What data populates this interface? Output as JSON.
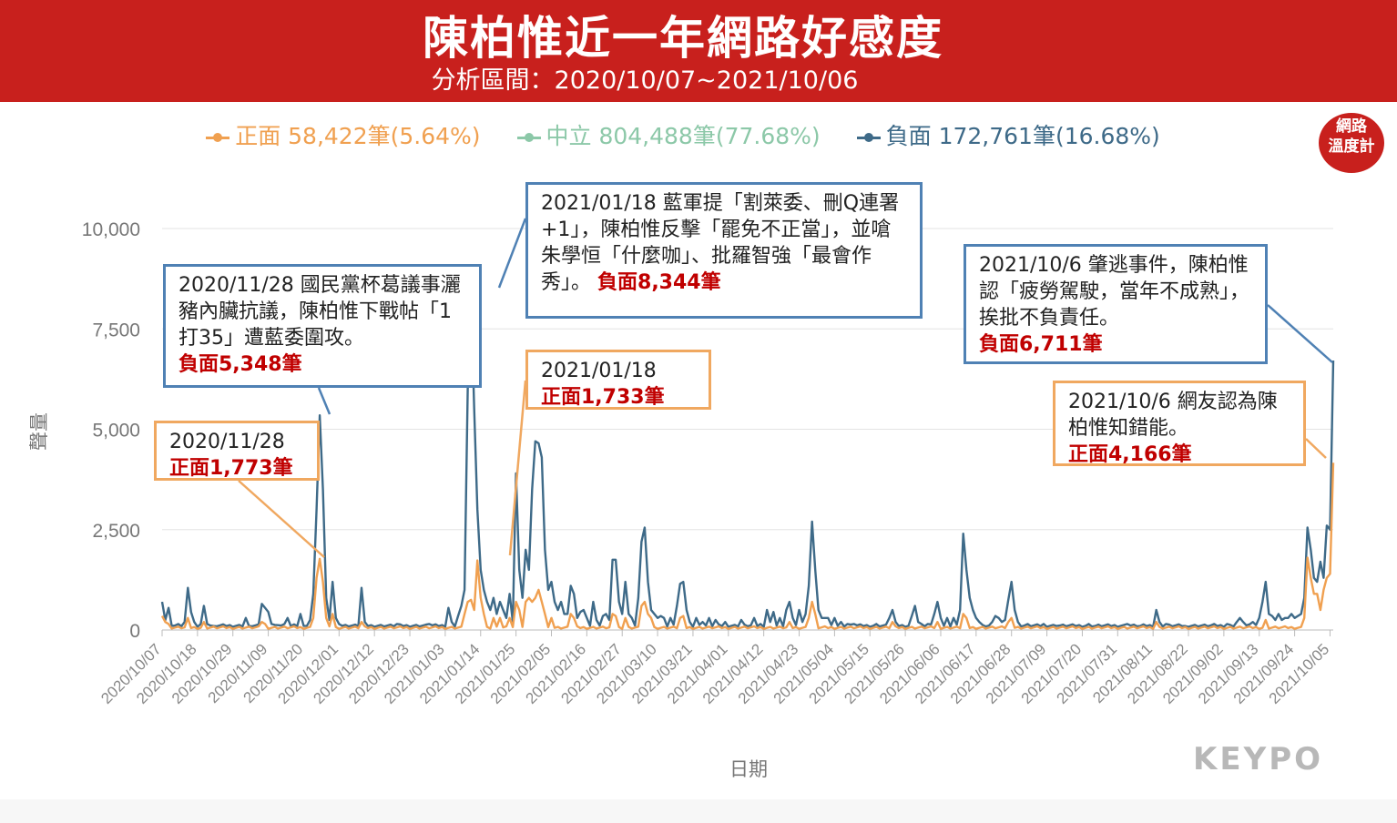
{
  "header": {
    "title": "陳柏惟近一年網路好感度",
    "subtitle": "分析區間：2020/10/07~2021/10/06"
  },
  "legend": [
    {
      "label": "正面 58,422筆(5.64%)",
      "color": "#f0a050"
    },
    {
      "label": "中立 804,488筆(77.68%)",
      "color": "#8cc8a8"
    },
    {
      "label": "負面 172,761筆(16.68%)",
      "color": "#3e6a88"
    }
  ],
  "badge": {
    "line1": "網路",
    "line2": "溫度計"
  },
  "brand": "KEYPO",
  "annotations": {
    "a1": {
      "text": "2020/11/28 國民黨杯葛議事灑豬內臟抗議，陳柏惟下戰帖「1打35」遭藍委圍攻。",
      "highlight": "負面5,348筆"
    },
    "a2": {
      "text": "2020/11/28",
      "highlight": "正面1,773筆"
    },
    "a3": {
      "text": "2021/01/18 藍軍提「割萊委、刪Q連署+1」，陳柏惟反擊「罷免不正當」，並嗆朱學恒「什麼咖」、批羅智強「最會作秀」。",
      "highlight": "負面8,344筆"
    },
    "a4": {
      "text": "2021/01/18",
      "highlight": "正面1,733筆"
    },
    "a5": {
      "text": "2021/10/6 肇逃事件，陳柏惟認「疲勞駕駛，當年不成熟」，挨批不負責任。",
      "highlight": "負面6,711筆"
    },
    "a6": {
      "text": "2021/10/6 網友認為陳柏惟知錯能。",
      "highlight": "正面4,166筆"
    }
  },
  "chart_data": {
    "type": "line",
    "ylabel": "聲量",
    "xlabel": "日期",
    "ylim": [
      0,
      10000
    ],
    "yticks": [
      "0",
      "2,500",
      "5,000",
      "7,500",
      "10,000"
    ],
    "ytick_values": [
      0,
      2500,
      5000,
      7500,
      10000
    ],
    "xticks": [
      "2020/10/07",
      "2020/10/18",
      "2020/10/29",
      "2020/11/09",
      "2020/11/20",
      "2020/12/01",
      "2020/12/12",
      "2020/12/23",
      "2021/01/03",
      "2021/01/14",
      "2021/01/25",
      "2021/02/05",
      "2021/02/16",
      "2021/02/27",
      "2021/03/10",
      "2021/03/21",
      "2021/04/01",
      "2021/04/12",
      "2021/04/23",
      "2021/05/04",
      "2021/05/15",
      "2021/05/26",
      "2021/06/06",
      "2021/06/17",
      "2021/06/28",
      "2021/07/09",
      "2021/07/20",
      "2021/07/31",
      "2021/08/11",
      "2021/08/22",
      "2021/09/02",
      "2021/09/13",
      "2021/09/24",
      "2021/10/05"
    ],
    "start_date": "2020/10/07",
    "num_days": 365,
    "grid": true,
    "legend_position": "top",
    "series": [
      {
        "name": "負面",
        "color": "#3e6a88",
        "base": 80,
        "points": [
          [
            0,
            700
          ],
          [
            1,
            250
          ],
          [
            2,
            550
          ],
          [
            3,
            100
          ],
          [
            5,
            150
          ],
          [
            7,
            200
          ],
          [
            8,
            1050
          ],
          [
            9,
            450
          ],
          [
            10,
            200
          ],
          [
            12,
            150
          ],
          [
            13,
            600
          ],
          [
            14,
            150
          ],
          [
            16,
            100
          ],
          [
            26,
            300
          ],
          [
            27,
            100
          ],
          [
            31,
            650
          ],
          [
            32,
            550
          ],
          [
            33,
            450
          ],
          [
            34,
            150
          ],
          [
            36,
            120
          ],
          [
            38,
            150
          ],
          [
            39,
            300
          ],
          [
            40,
            100
          ],
          [
            43,
            400
          ],
          [
            44,
            100
          ],
          [
            46,
            250
          ],
          [
            47,
            900
          ],
          [
            48,
            3000
          ],
          [
            49,
            5348
          ],
          [
            50,
            3500
          ],
          [
            51,
            800
          ],
          [
            52,
            250
          ],
          [
            53,
            1200
          ],
          [
            54,
            300
          ],
          [
            55,
            150
          ],
          [
            61,
            100
          ],
          [
            62,
            1050
          ],
          [
            63,
            200
          ],
          [
            65,
            120
          ],
          [
            73,
            150
          ],
          [
            76,
            120
          ],
          [
            83,
            150
          ],
          [
            89,
            550
          ],
          [
            90,
            200
          ],
          [
            92,
            350
          ],
          [
            93,
            600
          ],
          [
            94,
            1000
          ],
          [
            95,
            6000
          ],
          [
            96,
            8344
          ],
          [
            97,
            5500
          ],
          [
            98,
            3000
          ],
          [
            99,
            1500
          ],
          [
            100,
            1000
          ],
          [
            101,
            700
          ],
          [
            102,
            500
          ],
          [
            103,
            800
          ],
          [
            104,
            400
          ],
          [
            105,
            700
          ],
          [
            106,
            500
          ],
          [
            107,
            300
          ],
          [
            108,
            900
          ],
          [
            109,
            200
          ],
          [
            110,
            3900
          ],
          [
            111,
            1500
          ],
          [
            112,
            800
          ],
          [
            113,
            2000
          ],
          [
            114,
            1500
          ],
          [
            115,
            3500
          ],
          [
            116,
            4700
          ],
          [
            117,
            4650
          ],
          [
            118,
            4300
          ],
          [
            119,
            2000
          ],
          [
            120,
            1000
          ],
          [
            121,
            1200
          ],
          [
            122,
            700
          ],
          [
            123,
            500
          ],
          [
            124,
            700
          ],
          [
            125,
            400
          ],
          [
            126,
            400
          ],
          [
            127,
            1100
          ],
          [
            128,
            900
          ],
          [
            129,
            300
          ],
          [
            130,
            450
          ],
          [
            131,
            500
          ],
          [
            132,
            300
          ],
          [
            134,
            700
          ],
          [
            135,
            250
          ],
          [
            137,
            350
          ],
          [
            138,
            400
          ],
          [
            139,
            250
          ],
          [
            140,
            1750
          ],
          [
            141,
            1750
          ],
          [
            142,
            700
          ],
          [
            143,
            400
          ],
          [
            144,
            1200
          ],
          [
            145,
            400
          ],
          [
            146,
            300
          ],
          [
            148,
            800
          ],
          [
            149,
            2200
          ],
          [
            150,
            2550
          ],
          [
            151,
            1200
          ],
          [
            152,
            500
          ],
          [
            153,
            400
          ],
          [
            154,
            300
          ],
          [
            155,
            350
          ],
          [
            156,
            300
          ],
          [
            158,
            300
          ],
          [
            160,
            600
          ],
          [
            161,
            1150
          ],
          [
            162,
            1200
          ],
          [
            163,
            500
          ],
          [
            164,
            200
          ],
          [
            166,
            300
          ],
          [
            168,
            200
          ],
          [
            170,
            300
          ],
          [
            172,
            250
          ],
          [
            175,
            200
          ],
          [
            180,
            250
          ],
          [
            184,
            300
          ],
          [
            186,
            150
          ],
          [
            188,
            500
          ],
          [
            189,
            200
          ],
          [
            190,
            450
          ],
          [
            192,
            300
          ],
          [
            194,
            500
          ],
          [
            195,
            700
          ],
          [
            196,
            300
          ],
          [
            198,
            500
          ],
          [
            199,
            200
          ],
          [
            200,
            400
          ],
          [
            201,
            1100
          ],
          [
            202,
            2700
          ],
          [
            203,
            1500
          ],
          [
            204,
            500
          ],
          [
            205,
            300
          ],
          [
            206,
            300
          ],
          [
            207,
            300
          ],
          [
            209,
            300
          ],
          [
            211,
            200
          ],
          [
            213,
            150
          ],
          [
            215,
            150
          ],
          [
            222,
            150
          ],
          [
            226,
            300
          ],
          [
            227,
            500
          ],
          [
            228,
            200
          ],
          [
            233,
            350
          ],
          [
            234,
            600
          ],
          [
            235,
            200
          ],
          [
            236,
            150
          ],
          [
            238,
            150
          ],
          [
            240,
            400
          ],
          [
            241,
            700
          ],
          [
            242,
            300
          ],
          [
            244,
            300
          ],
          [
            246,
            300
          ],
          [
            248,
            500
          ],
          [
            249,
            2400
          ],
          [
            250,
            1500
          ],
          [
            251,
            800
          ],
          [
            252,
            500
          ],
          [
            253,
            300
          ],
          [
            254,
            200
          ],
          [
            258,
            200
          ],
          [
            259,
            350
          ],
          [
            260,
            300
          ],
          [
            261,
            200
          ],
          [
            262,
            250
          ],
          [
            263,
            750
          ],
          [
            264,
            1200
          ],
          [
            265,
            500
          ],
          [
            266,
            200
          ],
          [
            269,
            150
          ],
          [
            274,
            150
          ],
          [
            278,
            100
          ],
          [
            288,
            150
          ],
          [
            290,
            100
          ],
          [
            300,
            150
          ],
          [
            304,
            100
          ],
          [
            309,
            500
          ],
          [
            310,
            200
          ],
          [
            312,
            150
          ],
          [
            318,
            100
          ],
          [
            327,
            150
          ],
          [
            331,
            150
          ],
          [
            334,
            200
          ],
          [
            335,
            300
          ],
          [
            336,
            200
          ],
          [
            339,
            200
          ],
          [
            341,
            300
          ],
          [
            342,
            700
          ],
          [
            343,
            1200
          ],
          [
            344,
            400
          ],
          [
            345,
            350
          ],
          [
            346,
            250
          ],
          [
            347,
            400
          ],
          [
            348,
            250
          ],
          [
            349,
            300
          ],
          [
            350,
            300
          ],
          [
            351,
            400
          ],
          [
            352,
            300
          ],
          [
            353,
            350
          ],
          [
            354,
            400
          ],
          [
            355,
            800
          ],
          [
            356,
            2550
          ],
          [
            357,
            2000
          ],
          [
            358,
            1300
          ],
          [
            359,
            1200
          ],
          [
            360,
            1700
          ],
          [
            361,
            1300
          ],
          [
            362,
            2600
          ],
          [
            363,
            2500
          ],
          [
            364,
            6711
          ]
        ]
      },
      {
        "name": "正面",
        "color": "#f0a050",
        "base": 30,
        "points": [
          [
            0,
            350
          ],
          [
            1,
            200
          ],
          [
            2,
            150
          ],
          [
            8,
            300
          ],
          [
            13,
            200
          ],
          [
            31,
            200
          ],
          [
            32,
            150
          ],
          [
            47,
            300
          ],
          [
            48,
            1300
          ],
          [
            49,
            1773
          ],
          [
            50,
            1200
          ],
          [
            51,
            300
          ],
          [
            53,
            400
          ],
          [
            62,
            200
          ],
          [
            94,
            400
          ],
          [
            95,
            700
          ],
          [
            96,
            750
          ],
          [
            97,
            500
          ],
          [
            98,
            1733
          ],
          [
            99,
            800
          ],
          [
            100,
            400
          ],
          [
            103,
            300
          ],
          [
            105,
            300
          ],
          [
            108,
            300
          ],
          [
            110,
            700
          ],
          [
            111,
            500
          ],
          [
            113,
            700
          ],
          [
            114,
            800
          ],
          [
            115,
            700
          ],
          [
            116,
            800
          ],
          [
            117,
            1000
          ],
          [
            118,
            700
          ],
          [
            119,
            400
          ],
          [
            121,
            300
          ],
          [
            127,
            400
          ],
          [
            128,
            300
          ],
          [
            140,
            400
          ],
          [
            141,
            350
          ],
          [
            144,
            300
          ],
          [
            149,
            600
          ],
          [
            150,
            700
          ],
          [
            151,
            400
          ],
          [
            152,
            300
          ],
          [
            161,
            300
          ],
          [
            162,
            350
          ],
          [
            195,
            200
          ],
          [
            201,
            300
          ],
          [
            202,
            700
          ],
          [
            203,
            400
          ],
          [
            227,
            200
          ],
          [
            241,
            200
          ],
          [
            249,
            400
          ],
          [
            250,
            300
          ],
          [
            263,
            200
          ],
          [
            264,
            300
          ],
          [
            309,
            200
          ],
          [
            343,
            250
          ],
          [
            355,
            300
          ],
          [
            356,
            1800
          ],
          [
            357,
            1300
          ],
          [
            358,
            900
          ],
          [
            359,
            900
          ],
          [
            360,
            500
          ],
          [
            361,
            1000
          ],
          [
            362,
            1300
          ],
          [
            363,
            1400
          ],
          [
            364,
            4166
          ]
        ]
      }
    ]
  }
}
